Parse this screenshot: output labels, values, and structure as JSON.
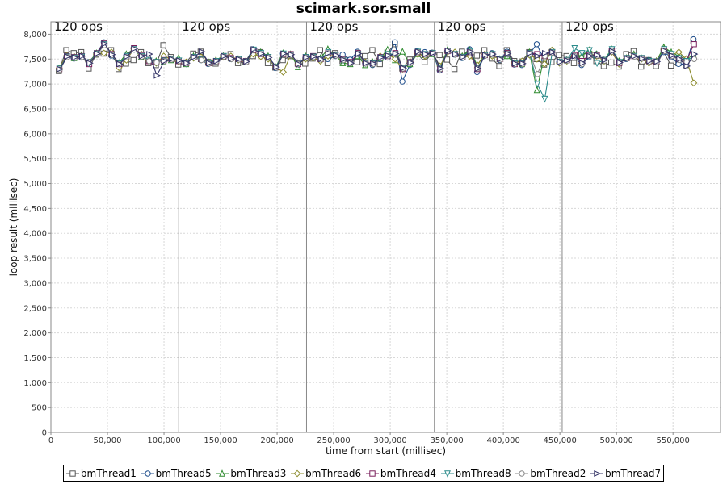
{
  "chart_data": {
    "type": "line",
    "title": "scimark.sor.small",
    "xlabel": "time from start (millisec)",
    "ylabel": "loop result (millisec)",
    "xlim": [
      0,
      592000
    ],
    "ylim": [
      0,
      8250
    ],
    "x_ticks": [
      0,
      50000,
      100000,
      150000,
      200000,
      250000,
      300000,
      350000,
      400000,
      450000,
      500000,
      550000
    ],
    "x_tick_labels": [
      "0",
      "50,000",
      "100,000",
      "150,000",
      "200,000",
      "250,000",
      "300,000",
      "350,000",
      "400,000",
      "450,000",
      "500,000",
      "550,000"
    ],
    "y_ticks": [
      0,
      500,
      1000,
      1500,
      2000,
      2500,
      3000,
      3500,
      4000,
      4500,
      5000,
      5500,
      6000,
      6500,
      7000,
      7500,
      8000
    ],
    "y_tick_labels": [
      "0",
      "500",
      "1,000",
      "1,500",
      "2,000",
      "2,500",
      "3,000",
      "3,500",
      "4,000",
      "4,500",
      "5,000",
      "5,500",
      "6,000",
      "6,500",
      "7,000",
      "7,500",
      "8,000"
    ],
    "grid": true,
    "legend_position": "bottom",
    "markers": [
      {
        "x": 0,
        "label": "120 ops"
      },
      {
        "x": 113000,
        "label": "120 ops"
      },
      {
        "x": 226000,
        "label": "120 ops"
      },
      {
        "x": 339000,
        "label": "120 ops"
      },
      {
        "x": 452000,
        "label": "120 ops"
      }
    ],
    "series": [
      {
        "name": "bmThread1",
        "color": "#555555",
        "marker": "square",
        "values": [
          [
            7260,
            7680,
            7620,
            7640,
            7310,
            7590,
            7610,
            7680,
            7300,
            7410,
            7480,
            7640,
            7420,
            7380,
            7780,
            7540,
            7390,
            7420,
            7610,
            7650,
            7440,
            7410,
            7540,
            7600,
            7420,
            7440,
            7560,
            7640,
            7420,
            7330,
            7480,
            7560,
            7410,
            7410,
            7510,
            7680,
            7420,
            7620,
            7460,
            7480,
            7440,
            7560,
            7680,
            7400,
            7630,
            7800,
            7310,
            7490,
            7620,
            7440,
            7620,
            7580,
            7490,
            7300,
            7650,
            7610,
            7570,
            7680,
            7510,
            7360,
            7680,
            7460,
            7450,
            7640,
            7500,
            7390,
            7440,
            7580,
            7560,
            7420,
            7600,
            7610,
            7460,
            7360,
            7430,
            7350,
            7600,
            7660,
            7350,
            7480,
            7360,
            7650,
            7370,
            7420,
            7380,
            7870
          ]
        ]
      },
      {
        "name": "bmThread5",
        "color": "#1f4e8c",
        "marker": "circle",
        "values": [
          [
            7300,
            7540,
            7510,
            7530,
            7440,
            7610,
            7840,
            7570,
            7390,
            7570,
            7720,
            7560,
            7470,
            7430,
            7460,
            7500,
            7480,
            7410,
            7540,
            7480,
            7400,
            7450,
            7560,
            7500,
            7510,
            7450,
            7700,
            7610,
            7530,
            7320,
            7610,
            7590,
            7410,
            7520,
            7560,
            7480,
            7500,
            7560,
            7590,
            7490,
            7650,
            7420,
            7380,
            7500,
            7530,
            7840,
            7050,
            7380,
            7660,
            7640,
            7630,
            7270,
            7660,
            7590,
            7520,
            7700,
            7240,
            7560,
            7620,
            7480,
            7650,
            7390,
            7380,
            7600,
            7800,
            7480,
            7640,
            7440,
            7480,
            7560,
            7380,
            7540,
            7600,
            7480,
            7660,
            7420,
            7500,
            7560,
            7520,
            7480,
            7450,
            7640,
            7540,
            7400,
            7400,
            7900
          ]
        ]
      },
      {
        "name": "bmThread3",
        "color": "#2e8b2e",
        "marker": "triangle-up",
        "values": [
          [
            7300,
            7560,
            7520,
            7580,
            7420,
            7620,
            7800,
            7600,
            7420,
            7600,
            7700,
            7540,
            7480,
            7460,
            7440,
            7480,
            7520,
            7400,
            7560,
            7500,
            7440,
            7480,
            7560,
            7520,
            7500,
            7460,
            7680,
            7640,
            7560,
            7340,
            7620,
            7600,
            7340,
            7560,
            7540,
            7520,
            7700,
            7580,
            7420,
            7400,
            7560,
            7380,
            7440,
            7520,
            7690,
            7480,
            7650,
            7400,
            7600,
            7580,
            7600,
            7320,
            7680,
            7600,
            7560,
            7680,
            7380,
            7580,
            7600,
            7500,
            7560,
            7420,
            7400,
            7640,
            6880,
            7560,
            7640,
            7440,
            7480,
            7600,
            7560,
            7680,
            7600,
            7480,
            7700,
            7460,
            7520,
            7600,
            7520,
            7480,
            7460,
            7740,
            7640,
            7560,
            7500,
            7580
          ]
        ]
      },
      {
        "name": "bmThread6",
        "color": "#8a8a2a",
        "marker": "diamond",
        "values": [
          [
            7320,
            7570,
            7550,
            7560,
            7430,
            7600,
            7620,
            7640,
            7330,
            7480,
            7700,
            7600,
            7460,
            7420,
            7560,
            7500,
            7450,
            7440,
            7520,
            7540,
            7420,
            7470,
            7540,
            7560,
            7480,
            7450,
            7600,
            7550,
            7500,
            7340,
            7240,
            7580,
            7400,
            7500,
            7520,
            7460,
            7560,
            7580,
            7500,
            7420,
            7620,
            7440,
            7400,
            7560,
            7600,
            7500,
            7300,
            7450,
            7600,
            7560,
            7620,
            7360,
            7640,
            7640,
            7540,
            7560,
            7380,
            7600,
            7560,
            7500,
            7620,
            7420,
            7460,
            7580,
            7500,
            7400,
            7680,
            7420,
            7460,
            7580,
            7420,
            7620,
            7560,
            7460,
            7640,
            7400,
            7520,
            7560,
            7500,
            7420,
            7460,
            7700,
            7580,
            7640,
            7500,
            7020
          ]
        ]
      },
      {
        "name": "bmThread4",
        "color": "#7a1f5c",
        "marker": "square",
        "values": [
          [
            7300,
            7560,
            7540,
            7560,
            7400,
            7620,
            7820,
            7600,
            7400,
            7560,
            7720,
            7580,
            7460,
            7440,
            7480,
            7500,
            7460,
            7420,
            7540,
            7500,
            7420,
            7460,
            7560,
            7520,
            7500,
            7460,
            7680,
            7600,
            7540,
            7340,
            7600,
            7600,
            7400,
            7540,
            7560,
            7500,
            7620,
            7580,
            7500,
            7440,
            7620,
            7420,
            7420,
            7540,
            7560,
            7620,
            7300,
            7440,
            7640,
            7600,
            7620,
            7300,
            7660,
            7600,
            7540,
            7640,
            7300,
            7580,
            7600,
            7500,
            7620,
            7400,
            7420,
            7620,
            7600,
            7560,
            7640,
            7440,
            7480,
            7580,
            7460,
            7580,
            7580,
            7480,
            7660,
            7420,
            7520,
            7560,
            7520,
            7460,
            7450,
            7680,
            7580,
            7500,
            7460,
            7800
          ]
        ]
      },
      {
        "name": "bmThread8",
        "color": "#2a8a8a",
        "marker": "triangle-down",
        "values": [
          [
            7310,
            7550,
            7530,
            7550,
            7420,
            7610,
            7800,
            7590,
            7410,
            7560,
            7700,
            7560,
            7470,
            7440,
            7470,
            7500,
            7470,
            7410,
            7540,
            7490,
            7420,
            7460,
            7560,
            7510,
            7500,
            7450,
            7690,
            7620,
            7540,
            7340,
            7610,
            7590,
            7400,
            7540,
            7550,
            7500,
            7640,
            7580,
            7480,
            7420,
            7600,
            7420,
            7410,
            7530,
            7600,
            7600,
            7320,
            7430,
            7650,
            7600,
            7620,
            7310,
            7670,
            7600,
            7540,
            7660,
            7320,
            7580,
            7600,
            7500,
            7600,
            7410,
            7410,
            7620,
            7000,
            6700,
            7640,
            7440,
            7480,
            7720,
            7620,
            7680,
            7420,
            7480,
            7700,
            7440,
            7520,
            7560,
            7520,
            7460,
            7450,
            7700,
            7600,
            7520,
            7460,
            7560
          ]
        ]
      },
      {
        "name": "bmThread2",
        "color": "#888888",
        "marker": "circle",
        "values": [
          [
            7290,
            7540,
            7520,
            7540,
            7430,
            7600,
            7780,
            7580,
            7400,
            7540,
            7690,
            7550,
            7460,
            7430,
            7460,
            7490,
            7460,
            7410,
            7530,
            7480,
            7410,
            7450,
            7550,
            7500,
            7490,
            7440,
            7680,
            7600,
            7530,
            7330,
            7600,
            7580,
            7400,
            7530,
            7540,
            7490,
            7620,
            7570,
            7480,
            7420,
            7600,
            7410,
            7400,
            7520,
            7560,
            7600,
            7310,
            7420,
            7640,
            7590,
            7610,
            7300,
            7660,
            7590,
            7530,
            7640,
            7310,
            7570,
            7590,
            7490,
            7600,
            7400,
            7400,
            7610,
            7200,
            7560,
            7630,
            7430,
            7470,
            7560,
            7400,
            7560,
            7570,
            7470,
            7650,
            7420,
            7510,
            7550,
            7510,
            7450,
            7440,
            7660,
            7560,
            7480,
            7440,
            7500
          ]
        ]
      },
      {
        "name": "bmThread7",
        "color": "#333366",
        "marker": "triangle-right",
        "values": [
          [
            7300,
            7550,
            7530,
            7560,
            7420,
            7610,
            7810,
            7590,
            7400,
            7550,
            7710,
            7560,
            7600,
            7170,
            7460,
            7500,
            7470,
            7420,
            7540,
            7650,
            7420,
            7460,
            7560,
            7510,
            7500,
            7450,
            7700,
            7610,
            7530,
            7340,
            7610,
            7590,
            7400,
            7530,
            7550,
            7500,
            7620,
            7580,
            7490,
            7420,
            7610,
            7420,
            7410,
            7530,
            7570,
            7610,
            7320,
            7430,
            7650,
            7600,
            7620,
            7310,
            7670,
            7600,
            7540,
            7650,
            7310,
            7580,
            7600,
            7500,
            7610,
            7410,
            7410,
            7620,
            7560,
            7620,
            7640,
            7440,
            7470,
            7560,
            7420,
            7560,
            7580,
            7480,
            7660,
            7430,
            7510,
            7560,
            7510,
            7460,
            7450,
            7670,
            7570,
            7500,
            7360,
            7600
          ]
        ]
      }
    ],
    "x_start": 7000,
    "x_step": 6600
  }
}
